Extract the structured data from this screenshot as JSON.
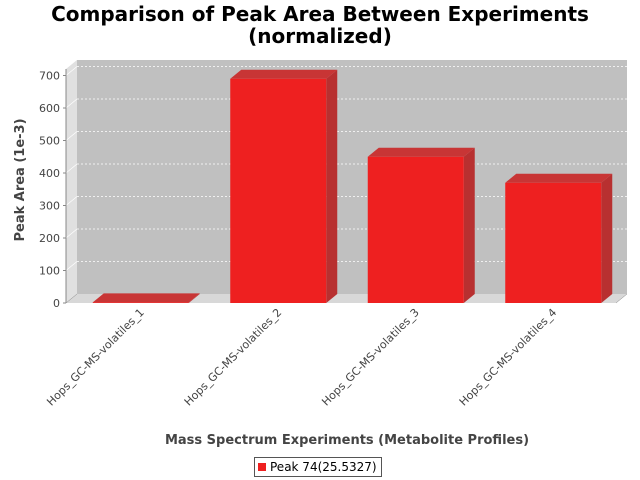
{
  "chart_data": {
    "type": "bar",
    "title_lines": [
      "Comparison of Peak Area Between Experiments",
      "(normalized)"
    ],
    "xlabel": "Mass Spectrum Experiments (Metabolite Profiles)",
    "ylabel": "Peak Area (1e-3)",
    "categories": [
      "Hops_GC-MS-volatiles_1",
      "Hops_GC-MS-volatiles_2",
      "Hops_GC-MS-volatiles_3",
      "Hops_GC-MS-volatiles_4"
    ],
    "series": [
      {
        "name": "Peak 74(25.5327)",
        "values": [
          2,
          690,
          450,
          370
        ],
        "color": "#ee2020"
      }
    ],
    "ylim": [
      0,
      720
    ],
    "yticks": [
      0,
      100,
      200,
      300,
      400,
      500,
      600,
      700
    ],
    "grid": true,
    "legend_position": "bottom-center",
    "plot_background": "#c0c0c0",
    "three_d": true
  }
}
